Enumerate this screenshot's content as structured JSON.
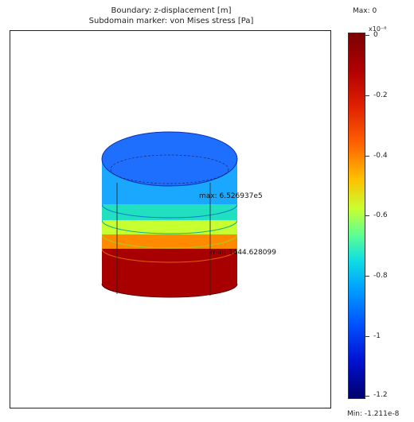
{
  "title": {
    "line1": "Boundary: z-displacement [m]",
    "line2": "Subdomain marker: von Mises stress [Pa]"
  },
  "annotations": {
    "max": "max: 6.526937e5",
    "min": "min: 1444.628099"
  },
  "colorbar": {
    "max_label": "Max: 0",
    "min_label": "Min: -1.211e-8",
    "exponent": "x10⁻⁸",
    "ticks": [
      "0",
      "-0.2",
      "-0.4",
      "-0.6",
      "-0.8",
      "-1",
      "-1.2"
    ]
  },
  "colors": {
    "top_cap": "#1f6fff",
    "band1": "#1aa8ff",
    "band2": "#20e0c0",
    "band3": "#c8ff30",
    "band4": "#ff8a00",
    "band5": "#a80000"
  }
}
